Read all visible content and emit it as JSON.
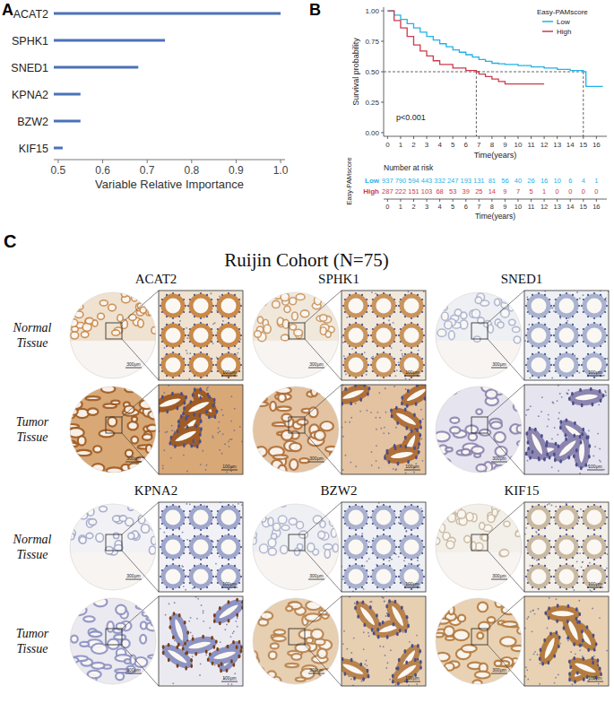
{
  "panel_labels": [
    "A",
    "B",
    "C"
  ],
  "chart_data": [
    {
      "type": "bar",
      "orientation": "horizontal",
      "categories": [
        "ACAT2",
        "SPHK1",
        "SNED1",
        "KPNA2",
        "BZW2",
        "KIF15"
      ],
      "values": [
        1.0,
        0.74,
        0.68,
        0.55,
        0.55,
        0.51
      ],
      "color": "#4a72b8",
      "xlabel": "Variable Relative Importance",
      "xlim": [
        0.49,
        1.01
      ],
      "xticks": [
        0.5,
        0.6,
        0.7,
        0.8,
        0.9,
        {
          "value": 1,
          "label": "1.0"
        }
      ]
    },
    {
      "type": "line",
      "line_style": "step",
      "xlabel": "Time(years)",
      "ylabel": "Survival probability",
      "xlim": [
        -0.3,
        16.8
      ],
      "ylim": [
        -0.03,
        1.03
      ],
      "xticks": [
        0,
        1,
        2,
        3,
        4,
        5,
        6,
        7,
        8,
        9,
        10,
        11,
        12,
        13,
        14,
        15,
        16
      ],
      "yticks": [
        {
          "value": 0,
          "label": "0.00"
        },
        {
          "value": 0.25,
          "label": "0.25"
        },
        {
          "value": 0.5,
          "label": "0.50"
        },
        {
          "value": 0.75,
          "label": "0.75"
        },
        {
          "value": 1,
          "label": "1.00"
        }
      ],
      "legend": "top-right",
      "legend_title": "Easy-PAMscore",
      "annotations": [
        "p<0.001"
      ],
      "median": 0.5,
      "median_times": [
        6.8,
        15
      ],
      "risk_table_title": "Number at risk",
      "series": [
        {
          "name": "Low",
          "color": "#1fb2e6",
          "x": [
            0,
            0.5,
            1,
            1.5,
            2,
            2.5,
            3,
            3.5,
            4,
            4.5,
            5,
            5.5,
            6,
            6.5,
            7,
            7.5,
            8,
            8.5,
            9,
            10,
            11,
            12,
            13,
            14,
            15,
            15.2,
            16.5
          ],
          "values": [
            1,
            0.965,
            0.93,
            0.895,
            0.86,
            0.825,
            0.79,
            0.76,
            0.73,
            0.705,
            0.68,
            0.66,
            0.64,
            0.62,
            0.6,
            0.585,
            0.57,
            0.565,
            0.56,
            0.55,
            0.54,
            0.53,
            0.52,
            0.51,
            0.5,
            0.38,
            0.38
          ],
          "at_risk": [
            937,
            790,
            594,
            443,
            332,
            247,
            193,
            131,
            81,
            56,
            40,
            26,
            16,
            10,
            6,
            4,
            1
          ]
        },
        {
          "name": "High",
          "color": "#cc3a4b",
          "x": [
            0,
            0.5,
            1,
            1.5,
            2,
            2.5,
            3,
            3.5,
            4,
            5,
            6,
            6.8,
            7,
            7.5,
            8,
            8.5,
            9,
            10,
            11,
            12
          ],
          "values": [
            1,
            0.92,
            0.86,
            0.79,
            0.72,
            0.67,
            0.63,
            0.59,
            0.56,
            0.53,
            0.51,
            0.5,
            0.48,
            0.46,
            0.44,
            0.42,
            0.4,
            0.4,
            0.4,
            0.4
          ],
          "at_risk": [
            287,
            222,
            151,
            103,
            68,
            53,
            39,
            25,
            14,
            9,
            7,
            5,
            1,
            0,
            0,
            0,
            0
          ]
        }
      ]
    }
  ],
  "panel_c": {
    "title": "Ruijin Cohort (N=75)",
    "genes": [
      "ACAT2",
      "SPHK1",
      "SNED1",
      "KPNA2",
      "BZW2",
      "KIF15"
    ],
    "row_labels": [
      "Normal Tissue",
      "Tumor Tissue"
    ],
    "scale_labels": [
      "300μm",
      "100μm"
    ]
  }
}
